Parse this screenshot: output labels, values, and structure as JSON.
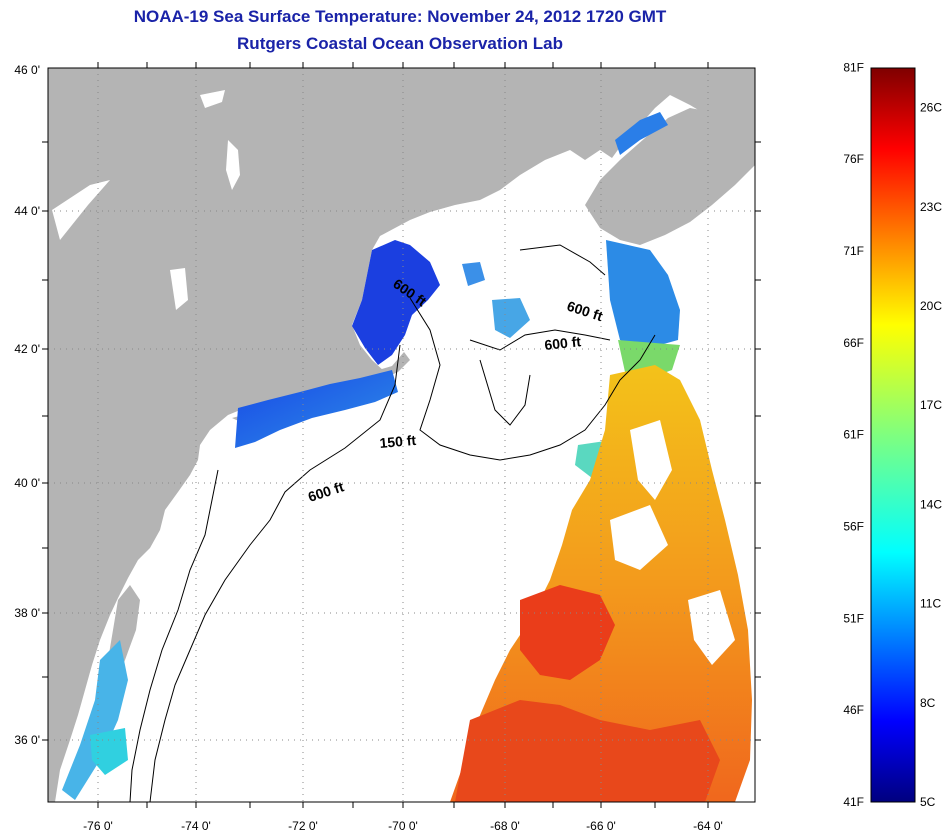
{
  "header": {
    "title": "NOAA-19 Sea Surface Temperature:  November 24, 2012 1720 GMT",
    "subtitle": "Rutgers Coastal Ocean Observation Lab"
  },
  "map": {
    "lat_labels": [
      "46 0'",
      "44 0'",
      "42 0'",
      "40 0'",
      "38 0'",
      "36 0'"
    ],
    "lon_labels": [
      "-76 0'",
      "-74 0'",
      "-72 0'",
      "-70 0'",
      "-68 0'",
      "-66 0'",
      "-64 0'"
    ],
    "depth_labels": [
      "600 ft",
      "600 ft",
      "600 ft",
      "150 ft",
      "600 ft"
    ],
    "land_color": "#b4b4b4"
  },
  "colorbar": {
    "fahrenheit_labels": [
      "81F",
      "76F",
      "71F",
      "66F",
      "61F",
      "56F",
      "51F",
      "46F",
      "41F"
    ],
    "celsius_labels": [
      "26C",
      "23C",
      "20C",
      "17C",
      "14C",
      "11C",
      "8C",
      "5C"
    ],
    "range_c": [
      5,
      27.2
    ],
    "colormap": "jet"
  }
}
